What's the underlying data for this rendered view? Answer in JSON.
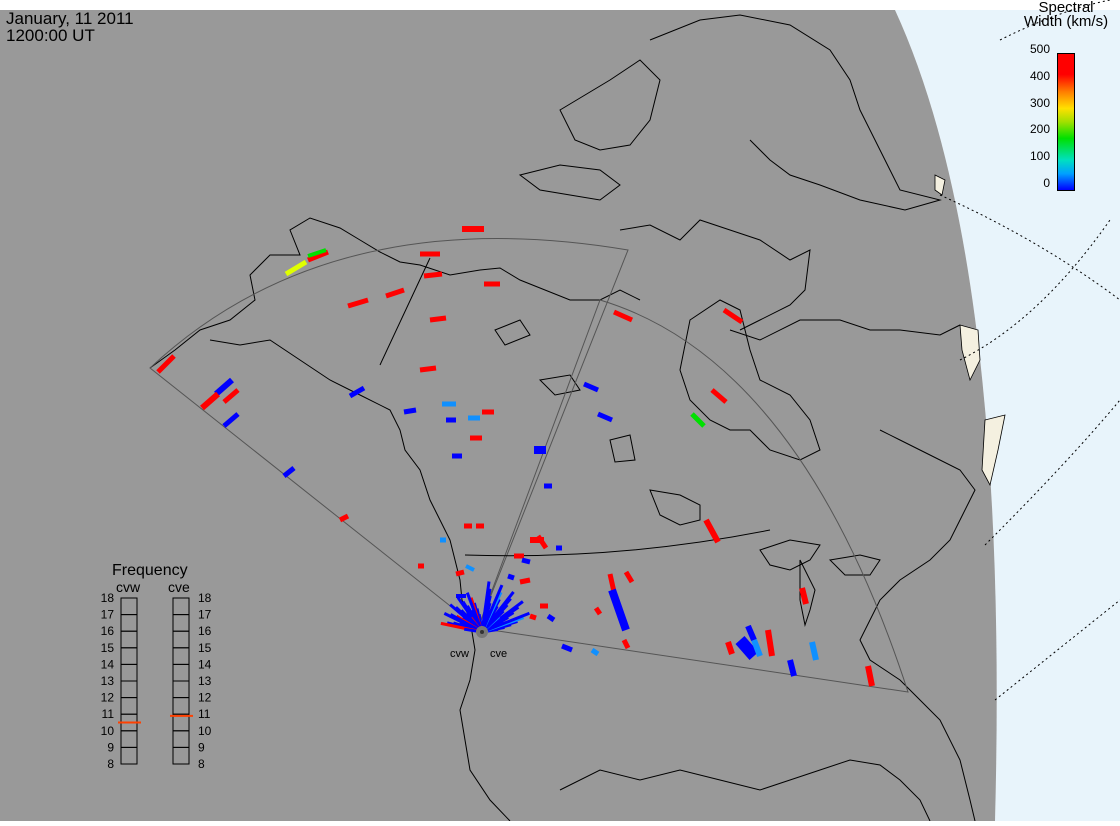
{
  "header": {
    "date": "January, 11 2011",
    "time": "1200:00 UT"
  },
  "colorbar": {
    "title_line1": "Spectral",
    "title_line2": "Width (km/s)",
    "ticks": [
      "500",
      "400",
      "300",
      "200",
      "100",
      "0"
    ]
  },
  "radars": {
    "west": "cvw",
    "east": "cve"
  },
  "frequency": {
    "title": "Frequency",
    "west_label": "cvw",
    "east_label": "cve",
    "levels": [
      "18",
      "17",
      "16",
      "15",
      "14",
      "13",
      "12",
      "11",
      "10",
      "9",
      "8"
    ],
    "west_value": 10.5,
    "east_value": 10.9,
    "marker_color": "#ff4000"
  },
  "colors": {
    "map_background": "#999999",
    "ocean_outside": "#e8f4fb",
    "land_edge": "#f4f0e0",
    "fov_line": "#555555",
    "coast_line": "#000000",
    "low_width": "#0000ff",
    "mid_low_width": "#1090ff",
    "mid_width": "#00e000",
    "mid_high_width": "#e0ff00",
    "high_width": "#ff0000"
  }
}
